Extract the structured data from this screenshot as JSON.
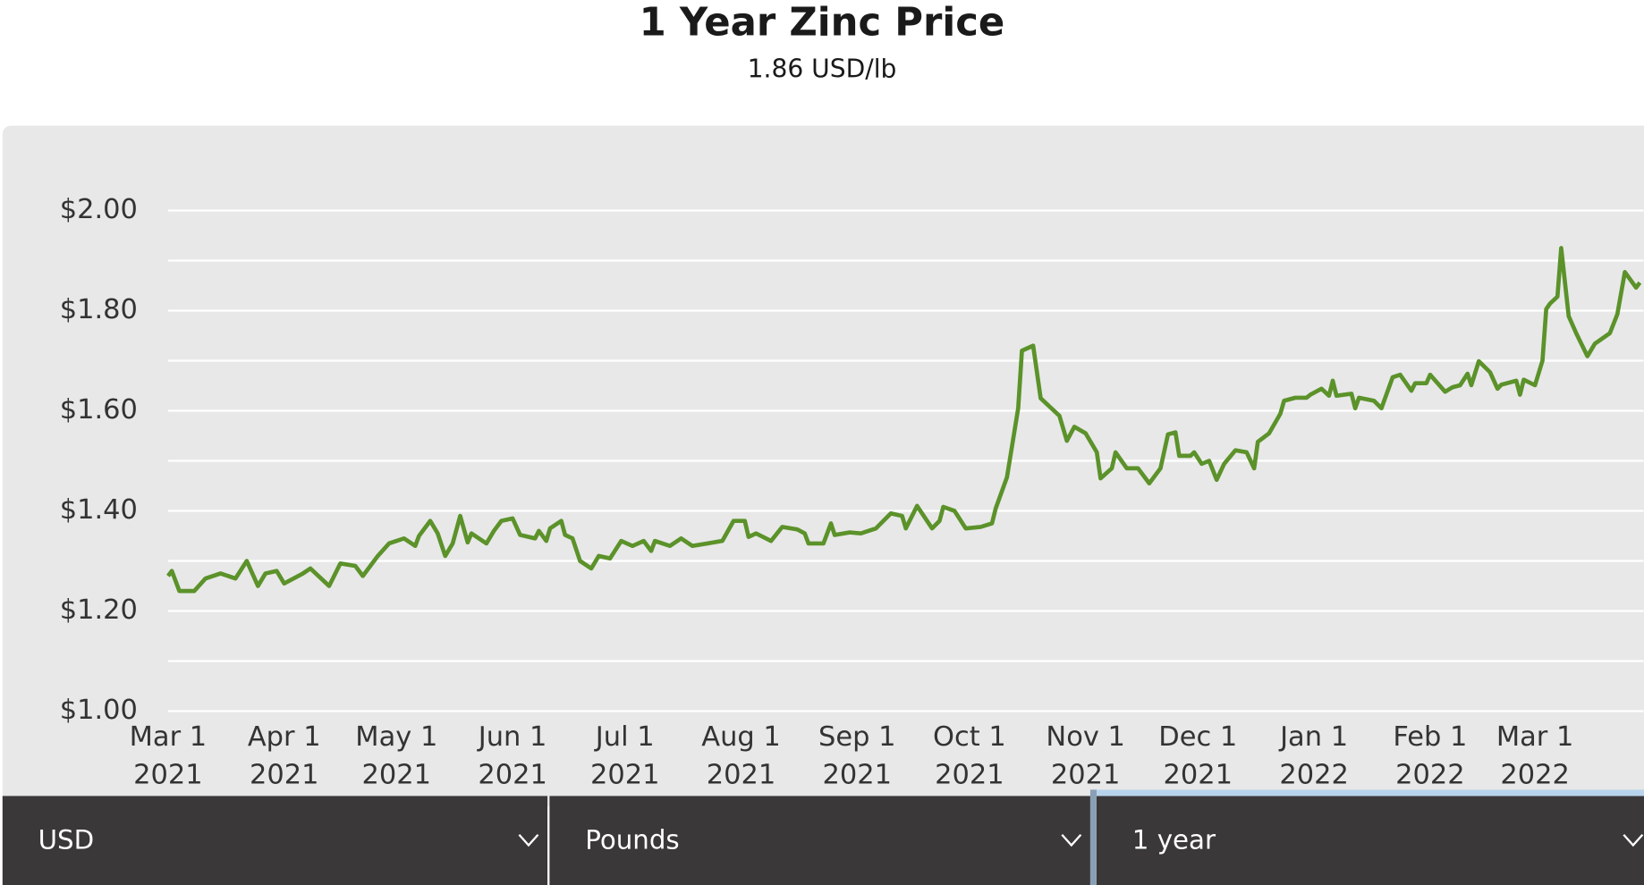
{
  "chart_data": {
    "type": "line",
    "title": "1 Year Zinc Price",
    "subtitle": "1.86 USD/lb",
    "x": [
      "2021-03-01",
      "2021-03-02",
      "2021-03-04",
      "2021-03-08",
      "2021-03-11",
      "2021-03-15",
      "2021-03-19",
      "2021-03-22",
      "2021-03-25",
      "2021-03-27",
      "2021-03-30",
      "2021-04-01",
      "2021-04-06",
      "2021-04-08",
      "2021-04-13",
      "2021-04-16",
      "2021-04-20",
      "2021-04-22",
      "2021-04-26",
      "2021-04-29",
      "2021-05-03",
      "2021-05-06",
      "2021-05-07",
      "2021-05-10",
      "2021-05-12",
      "2021-05-14",
      "2021-05-16",
      "2021-05-18",
      "2021-05-20",
      "2021-05-21",
      "2021-05-25",
      "2021-05-27",
      "2021-05-29",
      "2021-06-01",
      "2021-06-03",
      "2021-06-07",
      "2021-06-08",
      "2021-06-10",
      "2021-06-11",
      "2021-06-14",
      "2021-06-15",
      "2021-06-17",
      "2021-06-19",
      "2021-06-22",
      "2021-06-24",
      "2021-06-27",
      "2021-06-30",
      "2021-07-03",
      "2021-07-06",
      "2021-07-08",
      "2021-07-09",
      "2021-07-13",
      "2021-07-16",
      "2021-07-19",
      "2021-07-23",
      "2021-07-27",
      "2021-07-30",
      "2021-08-02",
      "2021-08-03",
      "2021-08-05",
      "2021-08-09",
      "2021-08-12",
      "2021-08-16",
      "2021-08-18",
      "2021-08-19",
      "2021-08-23",
      "2021-08-25",
      "2021-08-26",
      "2021-08-30",
      "2021-09-02",
      "2021-09-06",
      "2021-09-10",
      "2021-09-13",
      "2021-09-14",
      "2021-09-17",
      "2021-09-21",
      "2021-09-23",
      "2021-09-24",
      "2021-09-27",
      "2021-09-30",
      "2021-10-04",
      "2021-10-07",
      "2021-10-08",
      "2021-10-11",
      "2021-10-14",
      "2021-10-15",
      "2021-10-18",
      "2021-10-20",
      "2021-10-25",
      "2021-10-27",
      "2021-10-29",
      "2021-11-01",
      "2021-11-04",
      "2021-11-05",
      "2021-11-08",
      "2021-11-09",
      "2021-11-12",
      "2021-11-15",
      "2021-11-18",
      "2021-11-21",
      "2021-11-23",
      "2021-11-25",
      "2021-11-26",
      "2021-11-29",
      "2021-11-30",
      "2021-12-02",
      "2021-12-04",
      "2021-12-06",
      "2021-12-08",
      "2021-12-11",
      "2021-12-14",
      "2021-12-16",
      "2021-12-17",
      "2021-12-20",
      "2021-12-23",
      "2021-12-24",
      "2021-12-27",
      "2021-12-30",
      "2021-12-31",
      "2022-01-03",
      "2022-01-05",
      "2022-01-06",
      "2022-01-07",
      "2022-01-11",
      "2022-01-12",
      "2022-01-13",
      "2022-01-17",
      "2022-01-19",
      "2022-01-22",
      "2022-01-24",
      "2022-01-27",
      "2022-01-28",
      "2022-01-31",
      "2022-02-01",
      "2022-02-05",
      "2022-02-07",
      "2022-02-09",
      "2022-02-11",
      "2022-02-12",
      "2022-02-14",
      "2022-02-17",
      "2022-02-19",
      "2022-02-20",
      "2022-02-24",
      "2022-02-25",
      "2022-02-26",
      "2022-03-01",
      "2022-03-03",
      "2022-03-04",
      "2022-03-05",
      "2022-03-07",
      "2022-03-08",
      "2022-03-10",
      "2022-03-12",
      "2022-03-15",
      "2022-03-17",
      "2022-03-21",
      "2022-03-23",
      "2022-03-25",
      "2022-03-28",
      "2022-03-29"
    ],
    "series": [
      {
        "name": "Zinc",
        "color": "#5b922a",
        "values": [
          1.27,
          1.28,
          1.24,
          1.24,
          1.265,
          1.275,
          1.265,
          1.3,
          1.25,
          1.275,
          1.28,
          1.255,
          1.275,
          1.285,
          1.25,
          1.295,
          1.29,
          1.27,
          1.31,
          1.335,
          1.345,
          1.33,
          1.35,
          1.38,
          1.355,
          1.31,
          1.335,
          1.39,
          1.337,
          1.355,
          1.335,
          1.36,
          1.38,
          1.385,
          1.352,
          1.345,
          1.36,
          1.34,
          1.365,
          1.38,
          1.352,
          1.345,
          1.3,
          1.285,
          1.31,
          1.305,
          1.34,
          1.33,
          1.34,
          1.32,
          1.34,
          1.33,
          1.345,
          1.33,
          1.335,
          1.34,
          1.38,
          1.38,
          1.348,
          1.355,
          1.34,
          1.368,
          1.363,
          1.355,
          1.335,
          1.335,
          1.375,
          1.352,
          1.357,
          1.355,
          1.365,
          1.395,
          1.39,
          1.365,
          1.41,
          1.365,
          1.38,
          1.408,
          1.4,
          1.365,
          1.368,
          1.375,
          1.405,
          1.467,
          1.605,
          1.72,
          1.73,
          1.625,
          1.59,
          1.54,
          1.568,
          1.555,
          1.517,
          1.465,
          1.485,
          1.517,
          1.485,
          1.485,
          1.455,
          1.485,
          1.553,
          1.557,
          1.51,
          1.51,
          1.517,
          1.494,
          1.5,
          1.462,
          1.494,
          1.521,
          1.517,
          1.485,
          1.538,
          1.555,
          1.594,
          1.62,
          1.626,
          1.626,
          1.632,
          1.644,
          1.63,
          1.66,
          1.63,
          1.634,
          1.605,
          1.626,
          1.62,
          1.605,
          1.667,
          1.672,
          1.64,
          1.655,
          1.655,
          1.672,
          1.638,
          1.647,
          1.651,
          1.674,
          1.651,
          1.699,
          1.677,
          1.644,
          1.652,
          1.66,
          1.632,
          1.662,
          1.651,
          1.7,
          1.803,
          1.814,
          1.828,
          1.925,
          1.789,
          1.755,
          1.709,
          1.734,
          1.755,
          1.793,
          1.877,
          1.846,
          1.856
        ]
      }
    ],
    "xlim": [
      "2021-03-01",
      "2022-03-30"
    ],
    "xticks": [
      {
        "value": "2021-03-01",
        "label": [
          "Mar 1",
          "2021"
        ]
      },
      {
        "value": "2021-04-01",
        "label": [
          "Apr 1",
          "2021"
        ]
      },
      {
        "value": "2021-05-01",
        "label": [
          "May 1",
          "2021"
        ]
      },
      {
        "value": "2021-06-01",
        "label": [
          "Jun 1",
          "2021"
        ]
      },
      {
        "value": "2021-07-01",
        "label": [
          "Jul 1",
          "2021"
        ]
      },
      {
        "value": "2021-08-01",
        "label": [
          "Aug 1",
          "2021"
        ]
      },
      {
        "value": "2021-09-01",
        "label": [
          "Sep 1",
          "2021"
        ]
      },
      {
        "value": "2021-10-01",
        "label": [
          "Oct 1",
          "2021"
        ]
      },
      {
        "value": "2021-11-01",
        "label": [
          "Nov 1",
          "2021"
        ]
      },
      {
        "value": "2021-12-01",
        "label": [
          "Dec 1",
          "2021"
        ]
      },
      {
        "value": "2022-01-01",
        "label": [
          "Jan 1",
          "2022"
        ]
      },
      {
        "value": "2022-02-01",
        "label": [
          "Feb 1",
          "2022"
        ]
      },
      {
        "value": "2022-03-01",
        "label": [
          "Mar 1",
          "2022"
        ]
      }
    ],
    "ylim": [
      1.0,
      2.0
    ],
    "yticks": [
      {
        "value": 1.0,
        "label": "$1.00"
      },
      {
        "value": 1.2,
        "label": "$1.20"
      },
      {
        "value": 1.4,
        "label": "$1.40"
      },
      {
        "value": 1.6,
        "label": "$1.60"
      },
      {
        "value": 1.8,
        "label": "$1.80"
      },
      {
        "value": 2.0,
        "label": "$2.00"
      }
    ],
    "minor_yticks": [
      1.1,
      1.3,
      1.5,
      1.7,
      1.9
    ],
    "grid": true
  },
  "controls": [
    {
      "label": "USD"
    },
    {
      "label": "Pounds"
    },
    {
      "label": "1 year",
      "selected": true
    }
  ]
}
